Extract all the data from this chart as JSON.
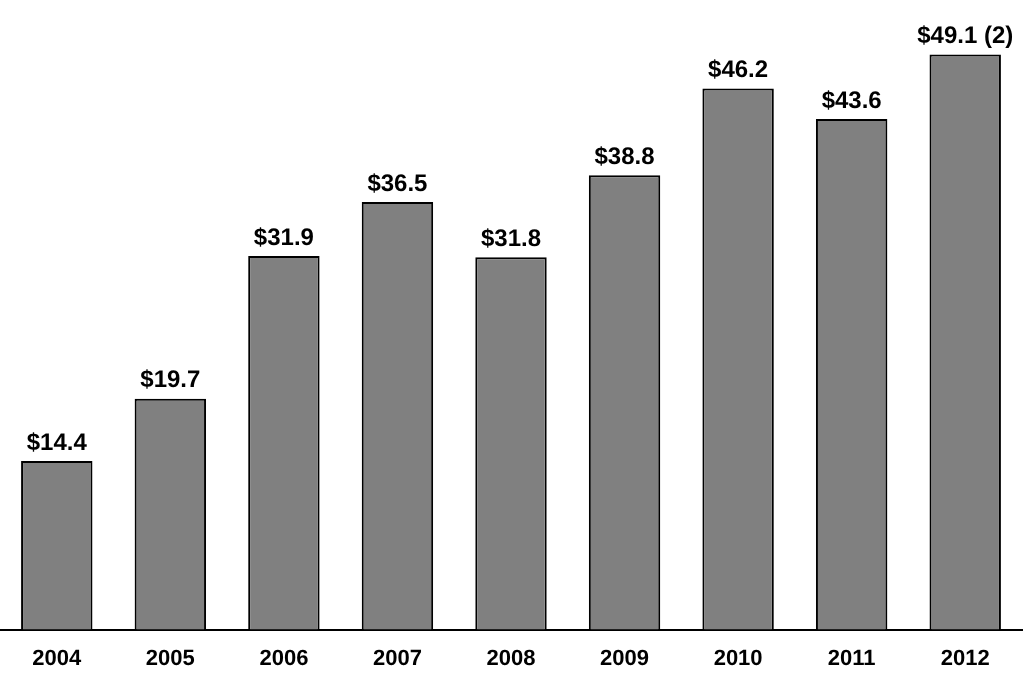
{
  "chart_data": {
    "type": "bar",
    "categories": [
      "2004",
      "2005",
      "2006",
      "2007",
      "2008",
      "2009",
      "2010",
      "2011",
      "2012"
    ],
    "values": [
      14.4,
      19.7,
      31.9,
      36.5,
      31.8,
      38.8,
      46.2,
      43.6,
      49.1
    ],
    "color": "#808080",
    "value_labels": [
      "$14.4",
      "$19.7",
      "$31.9",
      "$36.5",
      "$31.8",
      "$38.8",
      "$46.2",
      "$43.6",
      "$49.1 (2)"
    ],
    "grid": false,
    "legend": false
  }
}
